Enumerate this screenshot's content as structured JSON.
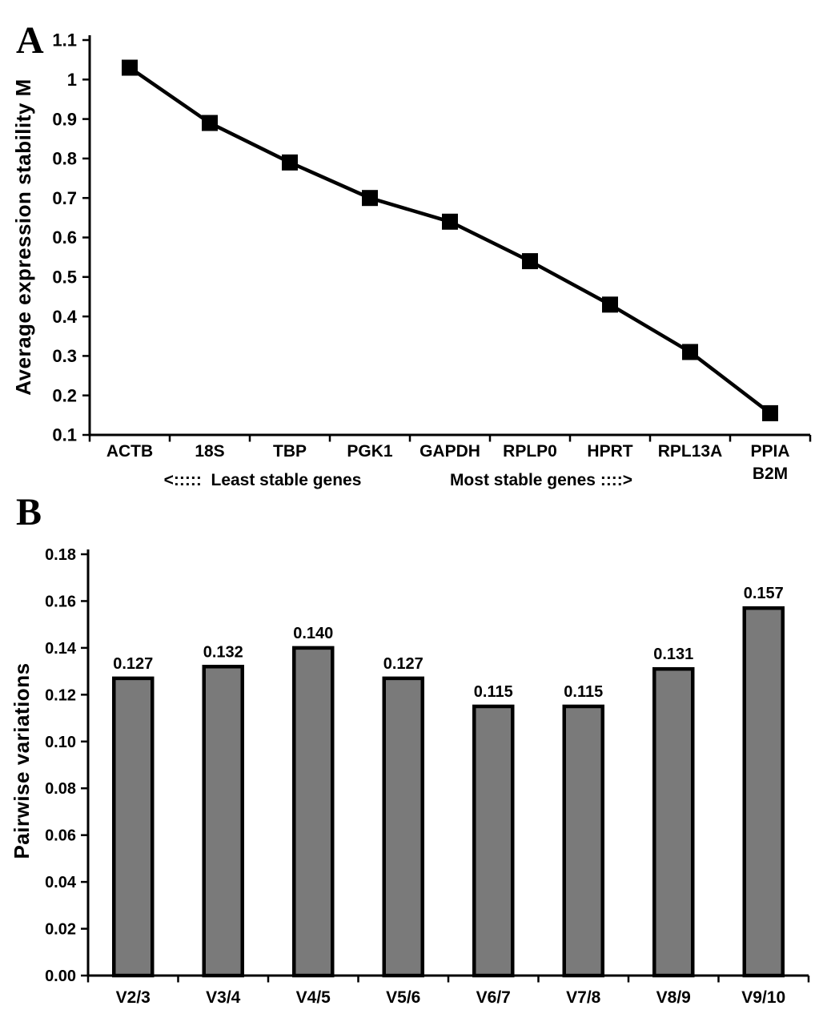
{
  "figure": {
    "background": "#ffffff",
    "ink_color": "#000000"
  },
  "panels": [
    {
      "label": "A"
    },
    {
      "label": "B"
    }
  ],
  "chart_data": [
    {
      "type": "line",
      "panel": "A",
      "title": "",
      "xlabel": "",
      "ylabel": "Average expression stability M",
      "categories": [
        "ACTB",
        "18S",
        "TBP",
        "PGK1",
        "GAPDH",
        "RPLP0",
        "HPRT",
        "RPL13A",
        "PPIA\nB2M"
      ],
      "values": [
        1.03,
        0.89,
        0.79,
        0.7,
        0.64,
        0.54,
        0.43,
        0.31,
        0.155
      ],
      "ylim": [
        0.1,
        1.1
      ],
      "ytick_values": [
        1.1,
        1.0,
        0.9,
        0.8,
        0.7,
        0.6,
        0.5,
        0.4,
        0.3,
        0.2,
        0.1
      ],
      "ytick_labels": [
        "1.1",
        "1",
        "0.9",
        "0.8",
        "0.7",
        "0.6",
        "0.5",
        "0.4",
        "0.3",
        "0.2",
        "0.1"
      ],
      "line_color": "#000000",
      "marker": "filled-square",
      "grid": false,
      "legend": "none",
      "annotation_left": "<:::::  Least stable genes",
      "annotation_right": "Most stable genes ::::>"
    },
    {
      "type": "bar",
      "panel": "B",
      "title": "",
      "xlabel": "",
      "ylabel": "Pairwise variations",
      "categories": [
        "V2/3",
        "V3/4",
        "V4/5",
        "V5/6",
        "V6/7",
        "V7/8",
        "V8/9",
        "V9/10"
      ],
      "values": [
        0.127,
        0.132,
        0.14,
        0.127,
        0.115,
        0.115,
        0.131,
        0.157
      ],
      "value_labels": [
        "0.127",
        "0.132",
        "0.140",
        "0.127",
        "0.115",
        "0.115",
        "0.131",
        "0.157"
      ],
      "ylim": [
        0,
        0.18
      ],
      "ytick_values": [
        0.0,
        0.02,
        0.04,
        0.06,
        0.08,
        0.1,
        0.12,
        0.14,
        0.16,
        0.18
      ],
      "ytick_labels": [
        "0.00",
        "0.02",
        "0.04",
        "0.06",
        "0.08",
        "0.10",
        "0.12",
        "0.14",
        "0.16",
        "0.18"
      ],
      "bar_color": "#7a7a7a",
      "bar_border_color": "#000000",
      "grid": false,
      "legend": "none"
    }
  ]
}
